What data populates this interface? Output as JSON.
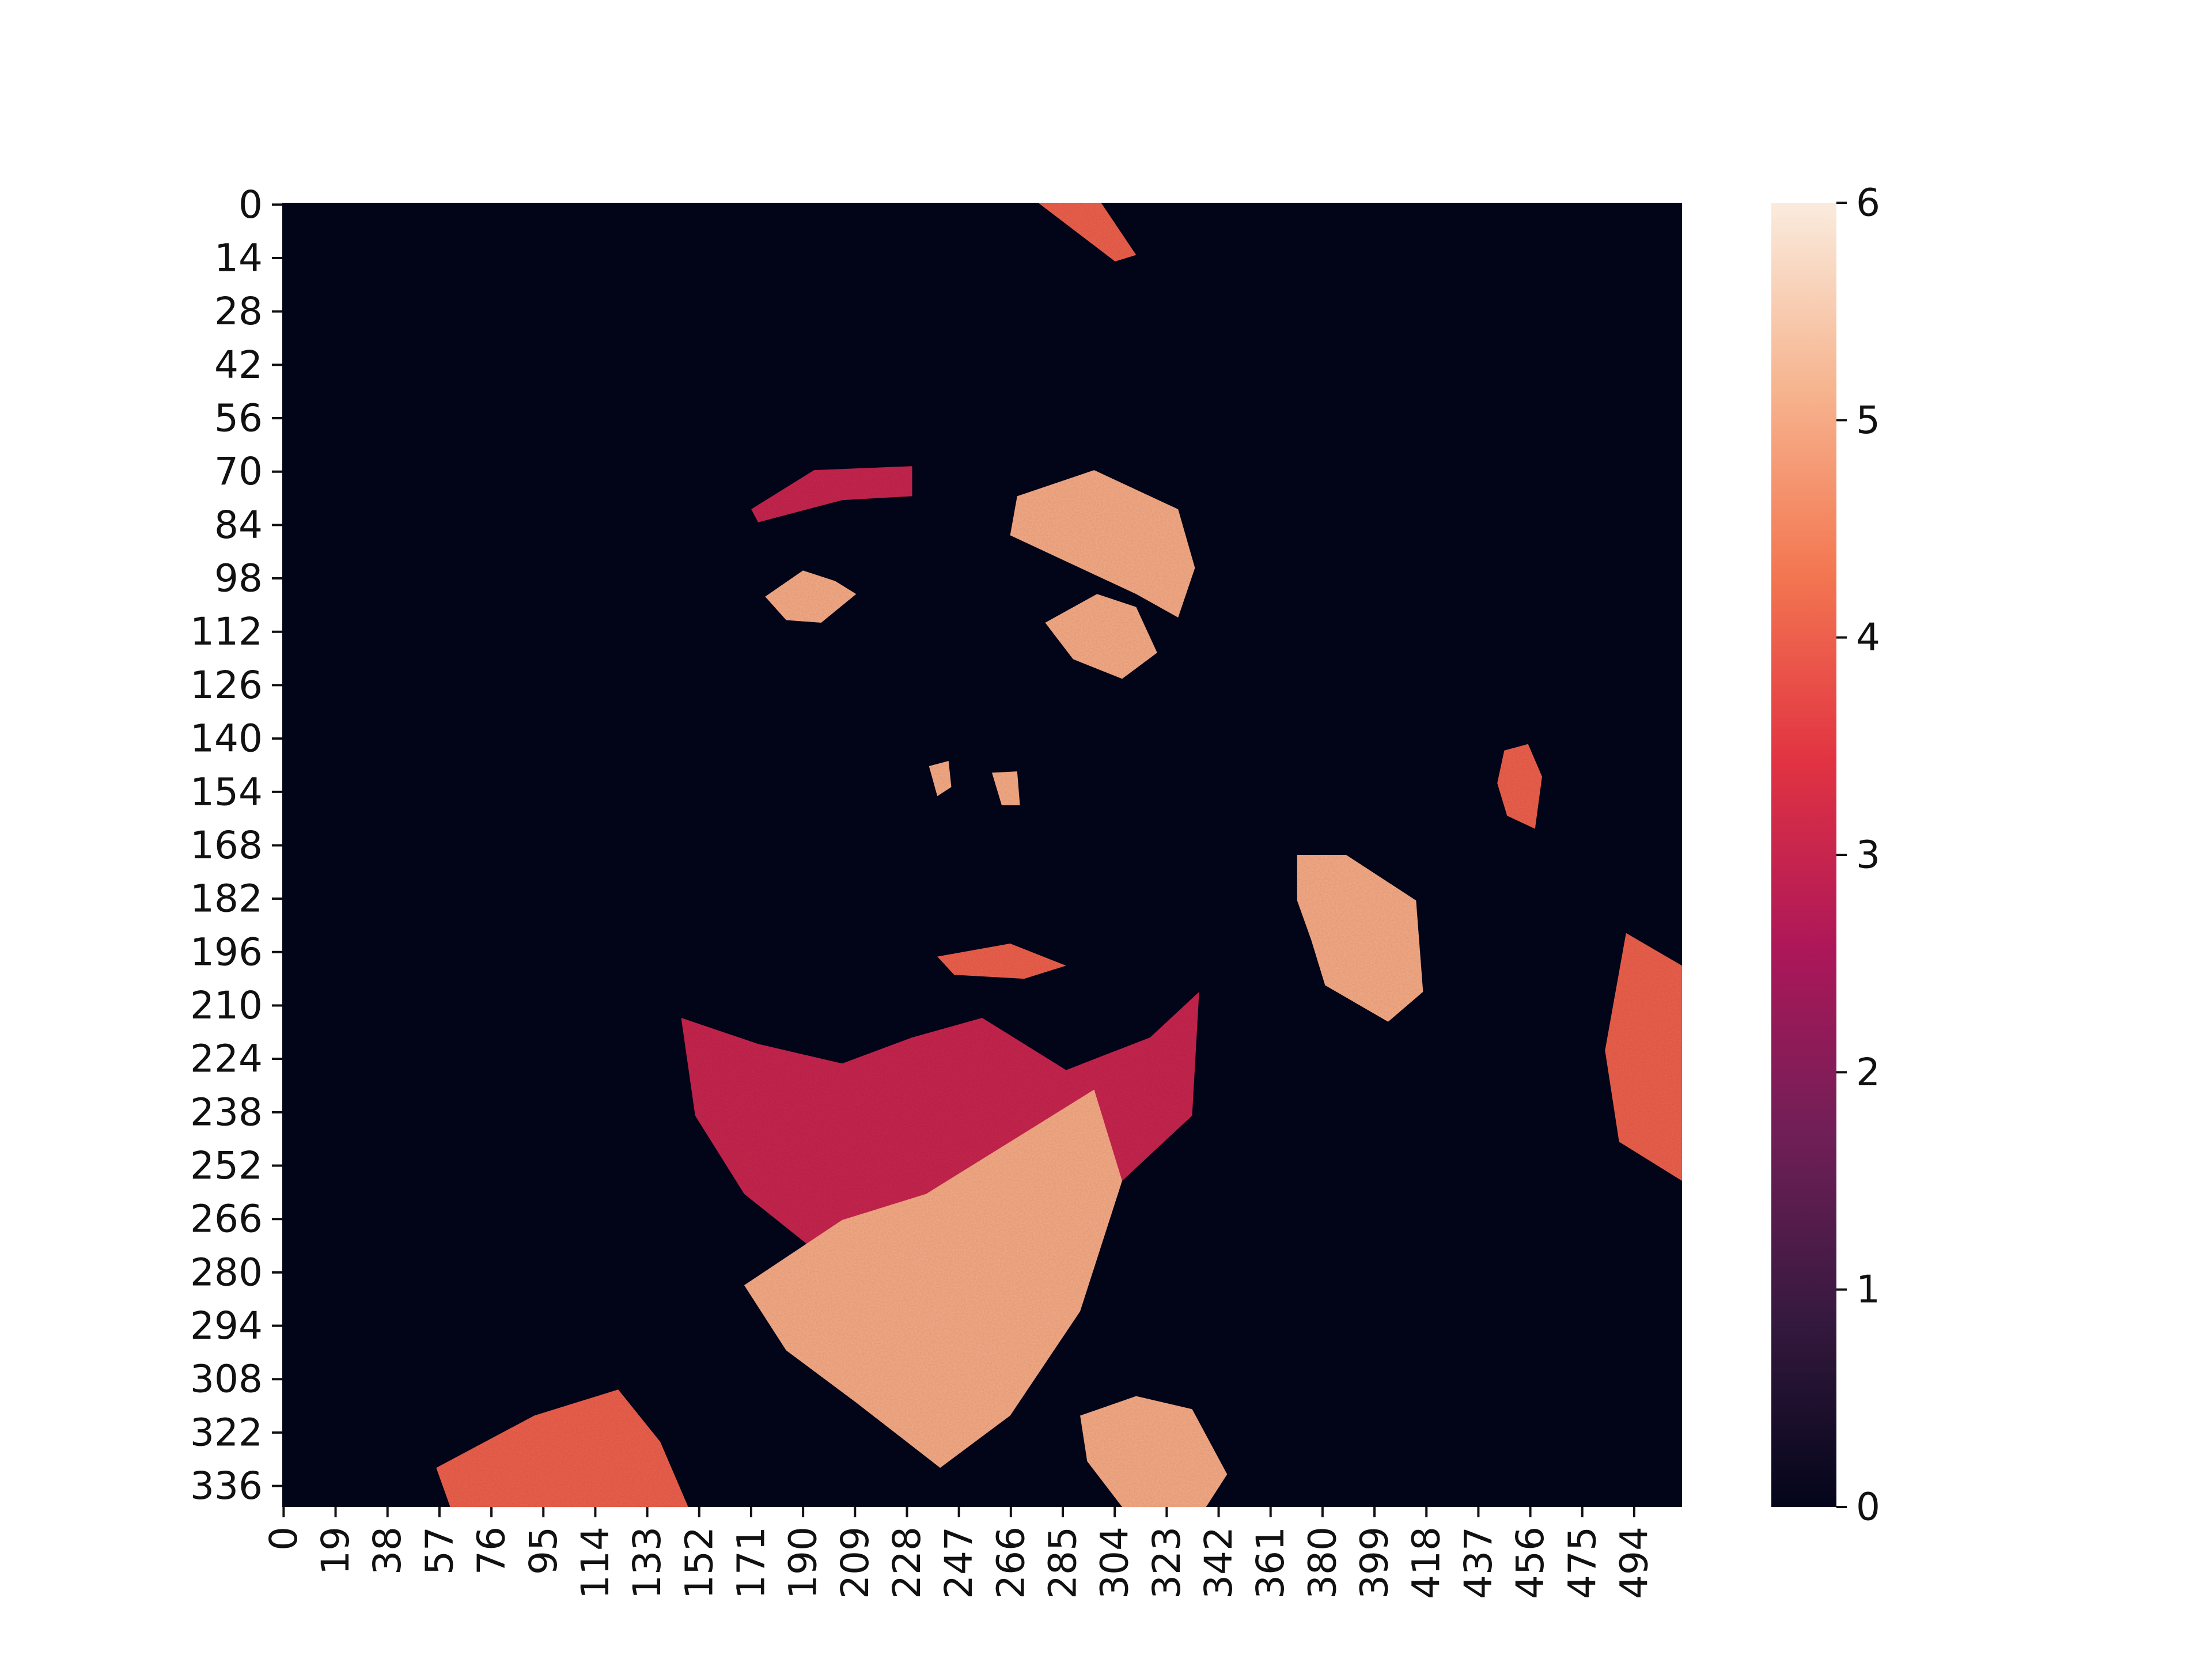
{
  "chart_data": {
    "type": "heatmap",
    "title": "",
    "xlabel": "",
    "ylabel": "",
    "x_tick_labels": [
      "0",
      "19",
      "38",
      "57",
      "76",
      "95",
      "114",
      "133",
      "152",
      "171",
      "190",
      "209",
      "228",
      "247",
      "266",
      "285",
      "304",
      "323",
      "342",
      "361",
      "380",
      "399",
      "418",
      "437",
      "456",
      "475",
      "494"
    ],
    "y_tick_labels": [
      "0",
      "14",
      "28",
      "42",
      "56",
      "70",
      "84",
      "98",
      "112",
      "126",
      "140",
      "154",
      "168",
      "182",
      "196",
      "210",
      "224",
      "238",
      "252",
      "266",
      "280",
      "294",
      "308",
      "322",
      "336"
    ],
    "x_range": [
      0,
      512
    ],
    "y_range": [
      0,
      342
    ],
    "colorbar": {
      "range": [
        0,
        6
      ],
      "ticks": [
        "0",
        "1",
        "2",
        "3",
        "4",
        "5",
        "6"
      ],
      "colormap": "rocket",
      "stops": [
        "#03051a",
        "#35193e",
        "#701f57",
        "#ad1759",
        "#e13342",
        "#f37651",
        "#f6b48f",
        "#faebdd"
      ]
    },
    "cell_values_description": "posterized grayscale photograph of a man's face (integer levels 0-6)",
    "regions": [
      {
        "name": "background",
        "value": 0
      },
      {
        "name": "brow-left",
        "value": 3
      },
      {
        "name": "brow-right",
        "value": 5
      },
      {
        "name": "eye-left",
        "value": 5
      },
      {
        "name": "eye-right",
        "value": 5
      },
      {
        "name": "nostril-left",
        "value": 5
      },
      {
        "name": "nostril-right",
        "value": 5
      },
      {
        "name": "lips",
        "value": 4
      },
      {
        "name": "beard-chin",
        "value": 3
      },
      {
        "name": "neck",
        "value": 5
      },
      {
        "name": "hand-back",
        "value": 5
      },
      {
        "name": "knuckle",
        "value": 4
      },
      {
        "name": "top-highlight",
        "value": 4
      },
      {
        "name": "fingers-right",
        "value": 4
      },
      {
        "name": "lower-glints",
        "value": 5
      },
      {
        "name": "shoulder-left",
        "value": 4
      }
    ]
  }
}
